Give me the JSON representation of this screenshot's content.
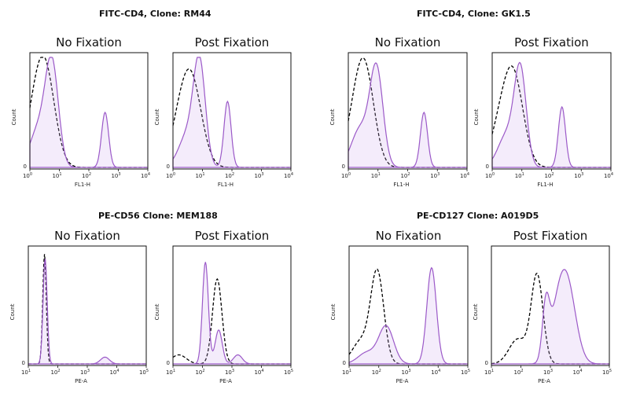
{
  "chart_data": [
    {
      "group_title": "FITC-CD4, Clone: RM44",
      "panels": [
        {
          "title": "No Fixation",
          "type": "histogram",
          "xlabel": "FL1-H",
          "ylabel": "Count",
          "x_ticks": [
            0,
            1,
            2,
            3,
            4
          ],
          "y_tick": "0",
          "series": [
            {
              "style": "dashed",
              "peaks": [
                [
                  0.5,
                  0.34,
                  0.9
                ],
                [
                  0.1,
                  0.3,
                  0.25
                ]
              ]
            },
            {
              "style": "filled",
              "peaks": [
                [
                  0.75,
                  0.22,
                  0.9
                ],
                [
                  0.3,
                  0.3,
                  0.35
                ],
                [
                  2.55,
                  0.12,
                  0.5
                ]
              ]
            }
          ]
        },
        {
          "title": "Post Fixation",
          "type": "histogram",
          "xlabel": "FL1-H",
          "ylabel": "Count",
          "x_ticks": [
            0,
            1,
            2,
            3,
            4
          ],
          "y_tick": "0",
          "series": [
            {
              "style": "dashed",
              "peaks": [
                [
                  0.6,
                  0.36,
                  0.82
                ],
                [
                  0.15,
                  0.3,
                  0.2
                ]
              ]
            },
            {
              "style": "filled",
              "peaks": [
                [
                  0.9,
                  0.2,
                  0.9
                ],
                [
                  0.5,
                  0.3,
                  0.3
                ],
                [
                  1.85,
                  0.12,
                  0.6
                ]
              ]
            }
          ]
        }
      ]
    },
    {
      "group_title": "FITC-CD4, Clone: GK1.5",
      "panels": [
        {
          "title": "No Fixation",
          "type": "histogram",
          "xlabel": "FL1-H",
          "ylabel": "Count",
          "x_ticks": [
            0,
            1,
            2,
            3,
            4
          ],
          "y_tick": "0",
          "series": [
            {
              "style": "dashed",
              "peaks": [
                [
                  0.55,
                  0.32,
                  0.88
                ],
                [
                  0.15,
                  0.3,
                  0.25
                ]
              ]
            },
            {
              "style": "filled",
              "peaks": [
                [
                  0.95,
                  0.22,
                  0.88
                ],
                [
                  0.4,
                  0.3,
                  0.35
                ],
                [
                  2.55,
                  0.12,
                  0.5
                ]
              ]
            }
          ]
        },
        {
          "title": "Post Fixation",
          "type": "histogram",
          "xlabel": "FL1-H",
          "ylabel": "Count",
          "x_ticks": [
            0,
            1,
            2,
            3,
            4
          ],
          "y_tick": "0",
          "series": [
            {
              "style": "dashed",
              "peaks": [
                [
                  0.7,
                  0.34,
                  0.85
                ],
                [
                  0.2,
                  0.3,
                  0.25
                ]
              ]
            },
            {
              "style": "filled",
              "peaks": [
                [
                  0.95,
                  0.2,
                  0.85
                ],
                [
                  0.5,
                  0.3,
                  0.3
                ],
                [
                  2.35,
                  0.12,
                  0.55
                ]
              ]
            }
          ]
        }
      ]
    },
    {
      "group_title": "PE-CD56 Clone: MEM188",
      "panels": [
        {
          "title": "No Fixation",
          "type": "histogram",
          "xlabel": "PE-A",
          "ylabel": "Count",
          "x_ticks": [
            1,
            2,
            3,
            4,
            5
          ],
          "y_tick": "0",
          "series": [
            {
              "style": "dashed",
              "peaks": [
                [
                  1.55,
                  0.06,
                  0.97
                ]
              ]
            },
            {
              "style": "filled",
              "peaks": [
                [
                  1.57,
                  0.07,
                  0.93
                ],
                [
                  3.6,
                  0.15,
                  0.06
                ]
              ]
            }
          ]
        },
        {
          "title": "Post Fixation",
          "type": "histogram",
          "xlabel": "PE-A",
          "ylabel": "Count",
          "x_ticks": [
            1,
            2,
            3,
            4,
            5
          ],
          "y_tick": "0",
          "series": [
            {
              "style": "dashed",
              "peaks": [
                [
                  2.5,
                  0.16,
                  0.75
                ],
                [
                  1.2,
                  0.25,
                  0.08
                ],
                [
                  0.15,
                  0.04,
                  0.95
                ]
              ]
            },
            {
              "style": "filled",
              "peaks": [
                [
                  2.1,
                  0.1,
                  0.9
                ],
                [
                  2.55,
                  0.12,
                  0.3
                ],
                [
                  3.2,
                  0.15,
                  0.08
                ]
              ]
            }
          ]
        }
      ]
    },
    {
      "group_title": "PE-CD127 Clone: A019D5",
      "panels": [
        {
          "title": "No Fixation",
          "type": "histogram",
          "xlabel": "PE-A",
          "ylabel": "Count",
          "x_ticks": [
            1,
            2,
            3,
            4,
            5
          ],
          "y_tick": "0",
          "series": [
            {
              "style": "dashed",
              "peaks": [
                [
                  1.95,
                  0.22,
                  0.8
                ],
                [
                  1.4,
                  0.3,
                  0.2
                ]
              ]
            },
            {
              "style": "filled",
              "peaks": [
                [
                  2.25,
                  0.25,
                  0.33
                ],
                [
                  1.6,
                  0.3,
                  0.1
                ],
                [
                  3.78,
                  0.16,
                  0.85
                ]
              ]
            }
          ]
        },
        {
          "title": "Post Fixation",
          "type": "histogram",
          "xlabel": "PE-A",
          "ylabel": "Count",
          "x_ticks": [
            1,
            2,
            3,
            4,
            5
          ],
          "y_tick": "0",
          "series": [
            {
              "style": "dashed",
              "peaks": [
                [
                  2.55,
                  0.2,
                  0.78
                ],
                [
                  1.9,
                  0.3,
                  0.22
                ]
              ]
            },
            {
              "style": "filled",
              "peaks": [
                [
                  2.85,
                  0.12,
                  0.48
                ],
                [
                  3.55,
                  0.3,
                  0.72
                ],
                [
                  3.2,
                  0.25,
                  0.25
                ]
              ]
            }
          ]
        }
      ]
    }
  ]
}
